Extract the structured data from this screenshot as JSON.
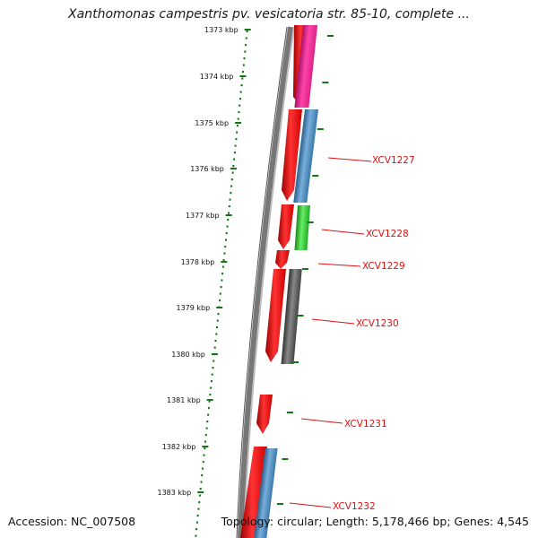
{
  "title": "Xanthomonas campestris pv. vesicatoria str. 85-10, complete ...",
  "footer": {
    "accession": "Accession: NC_007508",
    "summary": "Topology: circular; Length: 5,178,466 bp; Genes: 4,545"
  },
  "ruler": {
    "unit": "kbp",
    "ticks": [
      {
        "label": "1373 kbp"
      },
      {
        "label": "1374 kbp"
      },
      {
        "label": "1375 kbp"
      },
      {
        "label": "1376 kbp"
      },
      {
        "label": "1377 kbp"
      },
      {
        "label": "1378 kbp"
      },
      {
        "label": "1379 kbp"
      },
      {
        "label": "1380 kbp"
      },
      {
        "label": "1381 kbp"
      },
      {
        "label": "1382 kbp"
      },
      {
        "label": "1383 kbp"
      }
    ]
  },
  "colors": {
    "cds": "#ee1111",
    "pink": "#ee2299",
    "blue": "#4a88bb",
    "green": "#33cc33",
    "gray": "#555555",
    "backbone": "#888888",
    "tick": "#117711",
    "label": "#dd1111"
  },
  "genes": [
    {
      "label": "XCV1227"
    },
    {
      "label": "XCV1228"
    },
    {
      "label": "XCV1229"
    },
    {
      "label": "XCV1230"
    },
    {
      "label": "XCV1231"
    },
    {
      "label": "XCV1232"
    }
  ]
}
